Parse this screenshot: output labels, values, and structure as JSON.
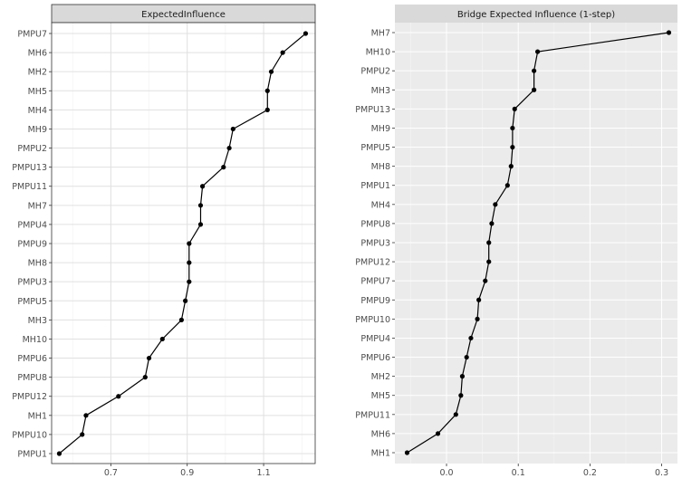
{
  "chart_data": [
    {
      "type": "line",
      "title": "ExpectedInfluence",
      "xlabel": "",
      "ylabel": "",
      "xlim": [
        0.545,
        1.235
      ],
      "x_ticks": [
        0.7,
        0.9,
        1.1
      ],
      "x_tick_labels": [
        "0.7",
        "0.9",
        "1.1"
      ],
      "grid": true,
      "background": "#ffffff",
      "panel_border": "#333333",
      "strip_fill": "#d9d9d9",
      "line_color": "#000000",
      "grid_major": "#e0e0e0",
      "grid_minor": "#f0f0f0",
      "categories": [
        "PMPU7",
        "MH6",
        "MH2",
        "MH5",
        "MH4",
        "MH9",
        "PMPU2",
        "PMPU13",
        "PMPU11",
        "MH7",
        "PMPU4",
        "PMPU9",
        "MH8",
        "PMPU3",
        "PMPU5",
        "MH3",
        "MH10",
        "PMPU6",
        "PMPU8",
        "PMPU12",
        "MH1",
        "PMPU10",
        "PMPU1"
      ],
      "values": [
        1.21,
        1.15,
        1.12,
        1.11,
        1.11,
        1.02,
        1.01,
        0.995,
        0.94,
        0.935,
        0.935,
        0.905,
        0.905,
        0.905,
        0.895,
        0.885,
        0.835,
        0.8,
        0.79,
        0.72,
        0.635,
        0.625,
        0.565
      ]
    },
    {
      "type": "line",
      "title": "Bridge Expected Influence (1-step)",
      "xlabel": "",
      "ylabel": "",
      "xlim": [
        -0.072,
        0.322
      ],
      "x_ticks": [
        0.0,
        0.1,
        0.2,
        0.3
      ],
      "x_tick_labels": [
        "0.0",
        "0.1",
        "0.2",
        "0.3"
      ],
      "grid": true,
      "background": "#ebebeb",
      "strip_fill": "#d9d9d9",
      "line_color": "#000000",
      "grid_major": "#ffffff",
      "grid_minor": "#f5f5f5",
      "categories": [
        "MH7",
        "MH10",
        "PMPU2",
        "MH3",
        "PMPU13",
        "MH9",
        "PMPU5",
        "MH8",
        "PMPU1",
        "MH4",
        "PMPU8",
        "PMPU3",
        "PMPU12",
        "PMPU7",
        "PMPU9",
        "PMPU10",
        "PMPU4",
        "PMPU6",
        "MH2",
        "MH5",
        "PMPU11",
        "MH6",
        "MH1"
      ],
      "values": [
        0.31,
        0.127,
        0.122,
        0.122,
        0.095,
        0.092,
        0.092,
        0.09,
        0.085,
        0.068,
        0.063,
        0.059,
        0.059,
        0.054,
        0.045,
        0.043,
        0.034,
        0.028,
        0.022,
        0.02,
        0.013,
        -0.012,
        -0.055
      ]
    }
  ]
}
